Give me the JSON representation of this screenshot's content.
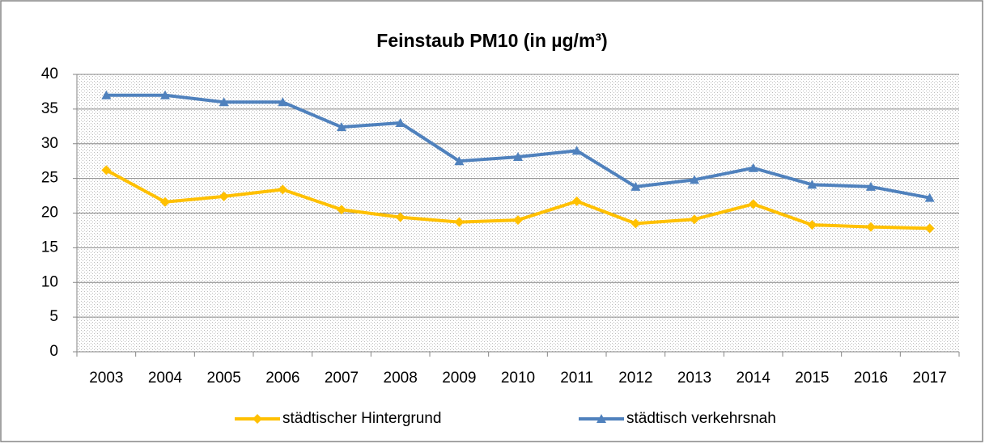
{
  "chart_data": {
    "type": "line",
    "title": "Feinstaub PM10 (in µg/m³)",
    "categories": [
      "2003",
      "2004",
      "2005",
      "2006",
      "2007",
      "2008",
      "2009",
      "2010",
      "2011",
      "2012",
      "2013",
      "2014",
      "2015",
      "2016",
      "2017"
    ],
    "series": [
      {
        "name": "städtischer Hintergrund",
        "color": "#FFC000",
        "marker": "diamond",
        "values": [
          26.2,
          21.6,
          22.4,
          23.4,
          20.5,
          19.4,
          18.7,
          19.0,
          21.7,
          18.5,
          19.1,
          21.3,
          18.3,
          18.0,
          17.8
        ]
      },
      {
        "name": "städtisch verkehrsnah",
        "color": "#4F81BD",
        "marker": "triangle",
        "values": [
          37.0,
          37.0,
          36.0,
          36.0,
          32.4,
          33.0,
          27.5,
          28.1,
          29.0,
          23.8,
          24.8,
          26.5,
          24.1,
          23.8,
          22.2
        ]
      }
    ],
    "ylim": [
      0,
      40
    ],
    "yticks": [
      0,
      5,
      10,
      15,
      20,
      25,
      30,
      35,
      40
    ],
    "grid": true,
    "legend": "bottom"
  }
}
